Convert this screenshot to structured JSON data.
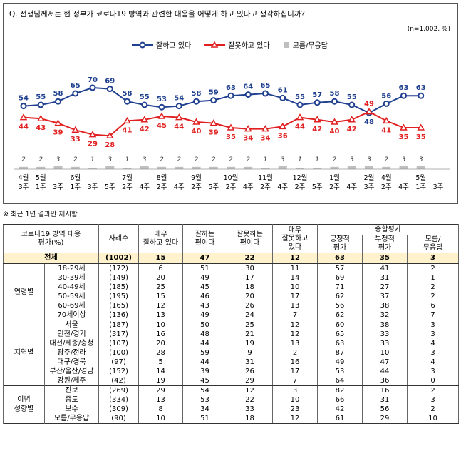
{
  "question": "Q. 선생님께서는 현 정부가 코로나19 방역과 관련한 대응을 어떻게 하고 있다고 생각하십니까?",
  "note": "(n=1,002, %)",
  "legend": {
    "good": "잘하고 있다",
    "bad": "잘못하고 있다",
    "dk": "모름/무응답"
  },
  "footnote": "※ 최근 1년 결과만 제시함",
  "chart_data": {
    "type": "line",
    "categories": [
      [
        "4월",
        "3주"
      ],
      [
        "5월",
        "1주"
      ],
      [
        "",
        "3주"
      ],
      [
        "6월",
        "1주"
      ],
      [
        "",
        "3주"
      ],
      [
        "",
        "5주"
      ],
      [
        "7월",
        "2주"
      ],
      [
        "",
        "4주"
      ],
      [
        "8월",
        "2주"
      ],
      [
        "",
        "4주"
      ],
      [
        "9월",
        "2주"
      ],
      [
        "",
        "5주"
      ],
      [
        "10월",
        "2주"
      ],
      [
        "",
        "4주"
      ],
      [
        "11월",
        "2주"
      ],
      [
        "",
        "4주"
      ],
      [
        "12월",
        "2주"
      ],
      [
        "",
        "5주"
      ],
      [
        "1월",
        "2주"
      ],
      [
        "",
        "4주"
      ],
      [
        "2월",
        "3주"
      ],
      [
        "4월",
        "2주"
      ],
      [
        "",
        "4주"
      ],
      [
        "5월",
        "1주"
      ],
      [
        "",
        "3주"
      ]
    ],
    "series": [
      {
        "name": "잘하고 있다",
        "color": "#1f3f8f",
        "values": [
          54,
          55,
          58,
          65,
          70,
          69,
          58,
          55,
          53,
          54,
          58,
          59,
          63,
          64,
          65,
          61,
          55,
          57,
          58,
          55,
          48,
          56,
          63,
          63,
          null
        ]
      },
      {
        "name": "잘못하고 있다",
        "color": "#e02020",
        "values": [
          44,
          43,
          39,
          33,
          29,
          28,
          41,
          42,
          45,
          44,
          40,
          39,
          35,
          34,
          34,
          36,
          44,
          42,
          40,
          42,
          49,
          41,
          35,
          35,
          null
        ]
      },
      {
        "name": "모름/무응답",
        "color": "#bfbfbf",
        "values": [
          2,
          2,
          3,
          2,
          1,
          3,
          1,
          3,
          2,
          2,
          2,
          2,
          2,
          2,
          1,
          3,
          1,
          1,
          2,
          3,
          3,
          2,
          3,
          3,
          null
        ]
      }
    ]
  },
  "table": {
    "headers": {
      "category": "코로나19 방역 대응\n평가(%)",
      "n": "사례수",
      "very_good": "매우\n잘하고 있다",
      "good": "잘하는\n편이다",
      "bad": "잘못하는\n편이다",
      "very_bad": "매우\n잘못하고\n있다",
      "summary": "종합평가",
      "positive": "긍정적\n평가",
      "negative": "부정적\n평가",
      "dk": "모름/\n무응답"
    },
    "total": {
      "label": "전체",
      "n": "(1002)",
      "vals": [
        "15",
        "47",
        "22",
        "12",
        "63",
        "35",
        "3"
      ]
    },
    "groups": [
      {
        "name": "연령별",
        "rows": [
          {
            "label": "18-29세",
            "n": "(172)",
            "vals": [
              "6",
              "51",
              "30",
              "11",
              "57",
              "41",
              "2"
            ]
          },
          {
            "label": "30-39세",
            "n": "(149)",
            "vals": [
              "20",
              "49",
              "17",
              "14",
              "69",
              "31",
              "1"
            ]
          },
          {
            "label": "40-49세",
            "n": "(185)",
            "vals": [
              "25",
              "45",
              "18",
              "10",
              "71",
              "27",
              "2"
            ]
          },
          {
            "label": "50-59세",
            "n": "(195)",
            "vals": [
              "15",
              "46",
              "20",
              "17",
              "62",
              "37",
              "2"
            ]
          },
          {
            "label": "60-69세",
            "n": "(165)",
            "vals": [
              "12",
              "43",
              "26",
              "13",
              "56",
              "38",
              "6"
            ]
          },
          {
            "label": "70세이상",
            "n": "(136)",
            "vals": [
              "13",
              "49",
              "24",
              "7",
              "62",
              "32",
              "7"
            ]
          }
        ]
      },
      {
        "name": "지역별",
        "rows": [
          {
            "label": "서울",
            "n": "(187)",
            "vals": [
              "10",
              "50",
              "25",
              "12",
              "60",
              "38",
              "3"
            ]
          },
          {
            "label": "인천/경기",
            "n": "(317)",
            "vals": [
              "16",
              "48",
              "21",
              "12",
              "65",
              "33",
              "3"
            ]
          },
          {
            "label": "대전/세종/충청",
            "n": "(107)",
            "vals": [
              "20",
              "44",
              "19",
              "13",
              "63",
              "33",
              "4"
            ]
          },
          {
            "label": "광주/전라",
            "n": "(100)",
            "vals": [
              "28",
              "59",
              "9",
              "2",
              "87",
              "10",
              "3"
            ]
          },
          {
            "label": "대구/경북",
            "n": "(97)",
            "vals": [
              "5",
              "44",
              "31",
              "16",
              "49",
              "47",
              "4"
            ]
          },
          {
            "label": "부산/울산/경남",
            "n": "(152)",
            "vals": [
              "14",
              "39",
              "26",
              "17",
              "53",
              "44",
              "3"
            ]
          },
          {
            "label": "강원/제주",
            "n": "(42)",
            "vals": [
              "19",
              "45",
              "29",
              "7",
              "64",
              "36",
              "0"
            ]
          }
        ]
      },
      {
        "name": "이념\n성향별",
        "rows": [
          {
            "label": "진보",
            "n": "(269)",
            "vals": [
              "29",
              "54",
              "12",
              "3",
              "82",
              "16",
              "2"
            ]
          },
          {
            "label": "중도",
            "n": "(334)",
            "vals": [
              "13",
              "53",
              "22",
              "10",
              "66",
              "31",
              "3"
            ]
          },
          {
            "label": "보수",
            "n": "(309)",
            "vals": [
              "8",
              "34",
              "33",
              "23",
              "42",
              "56",
              "2"
            ]
          },
          {
            "label": "모름/무응답",
            "n": "(90)",
            "vals": [
              "10",
              "51",
              "18",
              "12",
              "61",
              "29",
              "10"
            ]
          }
        ]
      }
    ]
  }
}
